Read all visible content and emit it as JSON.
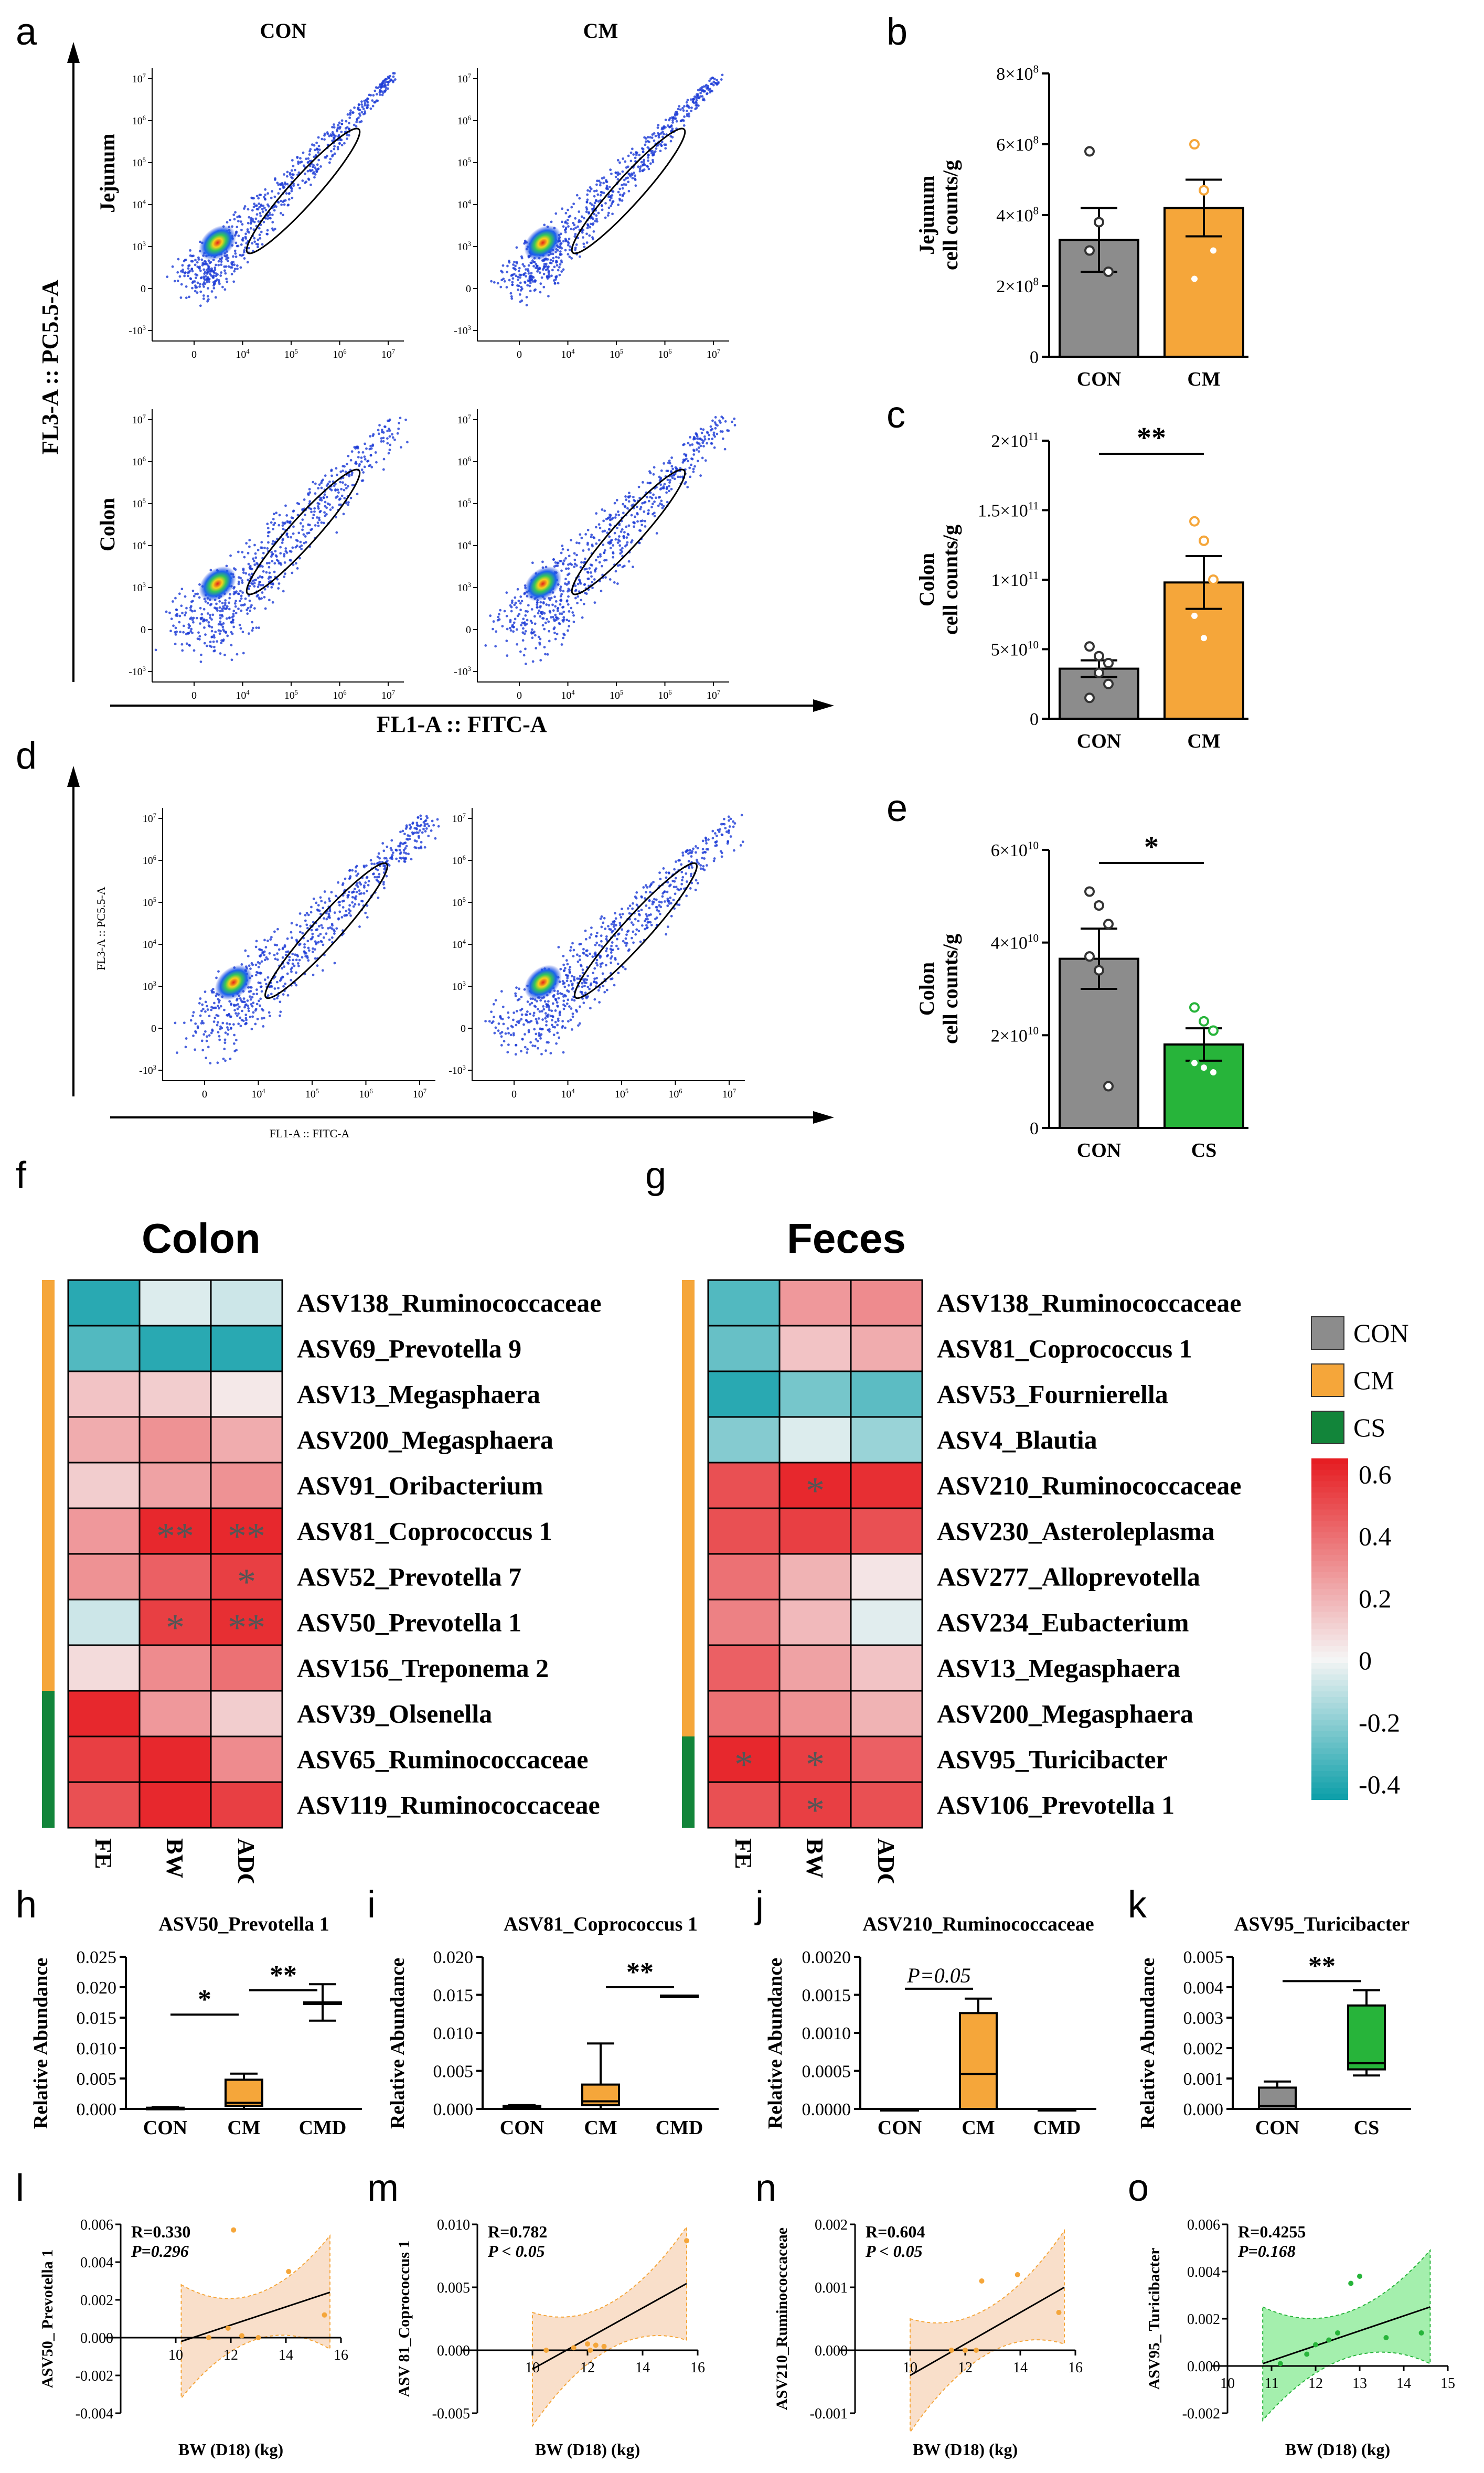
{
  "panel_letters": [
    "a",
    "b",
    "c",
    "d",
    "e",
    "f",
    "g",
    "h",
    "i",
    "j",
    "k",
    "l",
    "m",
    "n",
    "o"
  ],
  "flow": {
    "col_con": "CON",
    "col_cm": "CM",
    "row_jejunum": "Jejunum",
    "row_colon": "Colon",
    "y_axis_a": "FL3-A :: PC5.5-A",
    "x_axis_a": "FL1-A :: FITC-A",
    "y_axis_d": "FL3-A :: PC5.5-A",
    "x_axis_d": "FL1-A :: FITC-A",
    "x_ticks": [
      "0",
      "10",
      "10",
      "10",
      "10"
    ],
    "x_tick_exp": [
      "",
      "4",
      "5",
      "6",
      "7"
    ],
    "y_ticks": [
      "-10",
      "0",
      "10",
      "10",
      "10",
      "10",
      "10"
    ],
    "y_tick_exp": [
      "3",
      "",
      "3",
      "4",
      "5",
      "6",
      "7"
    ]
  },
  "legend": {
    "groups": [
      {
        "label": "CON",
        "color": "#8c8c8c"
      },
      {
        "label": "CM",
        "color": "#f5a63a"
      },
      {
        "label": "CS",
        "color": "#12853a"
      }
    ],
    "scale_ticks": [
      "0.6",
      "0.4",
      "0.2",
      "0",
      "-0.2",
      "-0.4"
    ]
  },
  "colon_heatmap": {
    "title": "Colon",
    "rows": [
      "ASV138_Ruminococcaceae",
      "ASV69_Prevotella 9",
      "ASV13_Megasphaera",
      "ASV200_Megasphaera",
      "ASV91_Oribacterium",
      "ASV81_Coprococcus 1",
      "ASV52_Prevotella 7",
      "ASV50_Prevotella 1",
      "ASV156_Treponema 2",
      "ASV39_Olsenella",
      "ASV65_Ruminococcaceae",
      "ASV119_Ruminococcaceae"
    ],
    "cols": [
      "FE",
      "BW",
      "ADG"
    ],
    "values": [
      [
        -0.4,
        -0.05,
        -0.08
      ],
      [
        -0.32,
        -0.4,
        -0.4
      ],
      [
        0.15,
        0.12,
        0.04
      ],
      [
        0.22,
        0.3,
        0.22
      ],
      [
        0.12,
        0.25,
        0.3
      ],
      [
        0.28,
        0.62,
        0.62
      ],
      [
        0.3,
        0.45,
        0.55
      ],
      [
        -0.08,
        0.55,
        0.6
      ],
      [
        0.08,
        0.32,
        0.4
      ],
      [
        0.62,
        0.28,
        0.12
      ],
      [
        0.55,
        0.62,
        0.32
      ],
      [
        0.5,
        0.62,
        0.55
      ]
    ],
    "stars": [
      [
        "",
        "",
        ""
      ],
      [
        "",
        "",
        ""
      ],
      [
        "",
        "",
        ""
      ],
      [
        "",
        "",
        ""
      ],
      [
        "",
        "",
        ""
      ],
      [
        "",
        "**",
        "**"
      ],
      [
        "",
        "",
        "*"
      ],
      [
        "",
        "*",
        "**"
      ],
      [
        "",
        "",
        ""
      ],
      [
        "",
        "",
        ""
      ],
      [
        "",
        "",
        ""
      ],
      [
        "",
        "",
        ""
      ]
    ],
    "group_bar": [
      "CM",
      "CM",
      "CM",
      "CM",
      "CM",
      "CM",
      "CM",
      "CM",
      "CM",
      "CS",
      "CS",
      "CS"
    ]
  },
  "feces_heatmap": {
    "title": "Feces",
    "rows": [
      "ASV138_Ruminococcaceae",
      "ASV81_Coprococcus 1",
      "ASV53_Fournierella",
      "ASV4_Blautia",
      "ASV210_Ruminococcaceae",
      "ASV230_Asteroleplasma",
      "ASV277_Alloprevotella",
      "ASV234_Eubacterium",
      "ASV13_Megasphaera",
      "ASV200_Megasphaera",
      "ASV95_Turicibacter",
      "ASV106_Prevotella 1"
    ],
    "cols": [
      "FE",
      "BW",
      "ADG"
    ],
    "values": [
      [
        -0.32,
        0.28,
        0.32
      ],
      [
        -0.28,
        0.15,
        0.22
      ],
      [
        -0.4,
        -0.25,
        -0.3
      ],
      [
        -0.22,
        -0.05,
        -0.18
      ],
      [
        0.5,
        0.62,
        0.6
      ],
      [
        0.5,
        0.55,
        0.5
      ],
      [
        0.4,
        0.2,
        0.05
      ],
      [
        0.35,
        0.18,
        -0.04
      ],
      [
        0.45,
        0.25,
        0.15
      ],
      [
        0.4,
        0.3,
        0.2
      ],
      [
        0.62,
        0.55,
        0.45
      ],
      [
        0.5,
        0.55,
        0.5
      ]
    ],
    "stars": [
      [
        "",
        "",
        ""
      ],
      [
        "",
        "",
        ""
      ],
      [
        "",
        "",
        ""
      ],
      [
        "",
        "",
        ""
      ],
      [
        "",
        "*",
        ""
      ],
      [
        "",
        "",
        ""
      ],
      [
        "",
        "",
        ""
      ],
      [
        "",
        "",
        ""
      ],
      [
        "",
        "",
        ""
      ],
      [
        "",
        "",
        ""
      ],
      [
        "*",
        "*",
        ""
      ],
      [
        "",
        "*",
        ""
      ]
    ],
    "group_bar": [
      "CM",
      "CM",
      "CM",
      "CM",
      "CM",
      "CM",
      "CM",
      "CM",
      "CM",
      "CM",
      "CS",
      "CS"
    ]
  },
  "chart_data": [
    {
      "id": "b",
      "type": "bar",
      "categories": [
        "CON",
        "CM"
      ],
      "values": [
        330000000.0,
        420000000.0
      ],
      "errors": [
        90000000.0,
        80000000.0
      ],
      "points": [
        [
          580000000.0,
          380000000.0,
          240000000.0,
          300000000.0
        ],
        [
          600000000.0,
          470000000.0,
          300000000.0,
          220000000.0
        ]
      ],
      "ylabel": "Jejunum cell counts/g",
      "ylim": [
        0,
        800000000.0
      ],
      "yticks": [
        "0",
        "2×10",
        "4×10",
        "6×10",
        "8×10"
      ],
      "ytick_exp": [
        "",
        "8",
        "8",
        "8",
        "8"
      ],
      "colors": [
        "#8c8c8c",
        "#f5a63a"
      ],
      "sig": ""
    },
    {
      "id": "c",
      "type": "bar",
      "categories": [
        "CON",
        "CM"
      ],
      "values": [
        36000000000.0,
        98000000000.0
      ],
      "errors": [
        6000000000.0,
        19000000000.0
      ],
      "points": [
        [
          52000000000.0,
          45000000000.0,
          25000000000.0,
          15000000000.0,
          33000000000.0,
          40000000000.0
        ],
        [
          142000000000.0,
          128000000000.0,
          100000000000.0,
          74000000000.0,
          58000000000.0
        ]
      ],
      "ylabel": "Colon cell counts/g",
      "ylim": [
        0,
        200000000000.0
      ],
      "yticks": [
        "0",
        "5×10",
        "1×10",
        "1.5×10",
        "2×10"
      ],
      "ytick_exp": [
        "",
        "10",
        "11",
        "11",
        "11"
      ],
      "colors": [
        "#8c8c8c",
        "#f5a63a"
      ],
      "sig": "**"
    },
    {
      "id": "e",
      "type": "bar",
      "categories": [
        "CON",
        "CS"
      ],
      "values": [
        36500000000.0,
        18000000000.0
      ],
      "errors": [
        6500000000.0,
        3500000000.0
      ],
      "points": [
        [
          51000000000.0,
          48000000000.0,
          44000000000.0,
          37000000000.0,
          34000000000.0,
          9000000000.0
        ],
        [
          26000000000.0,
          23000000000.0,
          21000000000.0,
          14000000000.0,
          13000000000.0,
          12000000000.0
        ]
      ],
      "ylabel": "Colon cell counts/g",
      "ylim": [
        0,
        60000000000.0
      ],
      "yticks": [
        "0",
        "2×10",
        "4×10",
        "6×10"
      ],
      "ytick_exp": [
        "",
        "10",
        "10",
        "10"
      ],
      "colors": [
        "#8c8c8c",
        "#27b43a"
      ],
      "sig": "*"
    },
    {
      "id": "h",
      "type": "box",
      "title": "ASV50_Prevotella 1",
      "categories": [
        "CON",
        "CM",
        "CMD"
      ],
      "ylabel": "Relative Abundance",
      "ylim": [
        0,
        0.025
      ],
      "yticks": [
        "0.000",
        "0.005",
        "0.010",
        "0.015",
        "0.020",
        "0.025"
      ],
      "boxes": [
        {
          "min": 0,
          "q1": 0,
          "med": 0,
          "q3": 0.0002,
          "max": 0.0003
        },
        {
          "min": 0,
          "q1": 0.0005,
          "med": 0.001,
          "q3": 0.0048,
          "max": 0.0058
        },
        {
          "min": 0.0145,
          "q1": 0.0175,
          "med": 0.0175,
          "q3": 0.0175,
          "max": 0.0205
        }
      ],
      "fill": "#f5a63a",
      "sig": [
        {
          "from": 0,
          "to": 1,
          "label": "*",
          "y": 0.0155
        },
        {
          "from": 1,
          "to": 2,
          "label": "**",
          "y": 0.0195
        }
      ]
    },
    {
      "id": "i",
      "type": "box",
      "title": "ASV81_Coprococcus 1",
      "categories": [
        "CON",
        "CM",
        "CMD"
      ],
      "ylabel": "Relative Abundance",
      "ylim": [
        0,
        0.02
      ],
      "yticks": [
        "0.000",
        "0.005",
        "0.010",
        "0.015",
        "0.020"
      ],
      "boxes": [
        {
          "min": 0,
          "q1": 0.0002,
          "med": 0.0003,
          "q3": 0.0004,
          "max": 0.0005
        },
        {
          "min": 0,
          "q1": 0.0005,
          "med": 0.001,
          "q3": 0.0032,
          "max": 0.0086
        },
        {
          "min": 0.0149,
          "q1": 0.0149,
          "med": 0.0149,
          "q3": 0.0149,
          "max": 0.0149
        }
      ],
      "fill": "#f5a63a",
      "sig": [
        {
          "from": 1,
          "to": 2,
          "label": "**",
          "y": 0.016
        }
      ]
    },
    {
      "id": "j",
      "type": "box",
      "title": "ASV210_Ruminococcaceae",
      "categories": [
        "CON",
        "CM",
        "CMD"
      ],
      "ylabel": "Relative Abundance",
      "ylim": [
        0,
        0.002
      ],
      "yticks": [
        "0.0000",
        "0.0005",
        "0.0010",
        "0.0015",
        "0.0020"
      ],
      "boxes": [
        {
          "min": 0,
          "q1": 0,
          "med": 0,
          "q3": 0,
          "max": 0
        },
        {
          "min": 0,
          "q1": 0,
          "med": 0.00046,
          "q3": 0.00126,
          "max": 0.00145
        },
        {
          "min": 0,
          "q1": 0,
          "med": 0,
          "q3": 0,
          "max": 0
        }
      ],
      "fill": "#f5a63a",
      "sig": [
        {
          "from": 0,
          "to": 1,
          "label": "P=0.05",
          "y": 0.00158
        }
      ]
    },
    {
      "id": "k",
      "type": "box",
      "title": "ASV95_Turicibacter",
      "categories": [
        "CON",
        "CS"
      ],
      "ylabel": "Relative Abundance",
      "ylim": [
        0,
        0.005
      ],
      "yticks": [
        "0.000",
        "0.001",
        "0.002",
        "0.003",
        "0.004",
        "0.005"
      ],
      "boxes": [
        {
          "min": 0,
          "q1": 0,
          "med": 0.0001,
          "q3": 0.0007,
          "max": 0.0009
        },
        {
          "min": 0.0011,
          "q1": 0.0013,
          "med": 0.0015,
          "q3": 0.0034,
          "max": 0.0039
        }
      ],
      "fills": [
        "#8c8c8c",
        "#27b43a"
      ],
      "sig": [
        {
          "from": 0,
          "to": 1,
          "label": "**",
          "y": 0.0042
        }
      ]
    },
    {
      "id": "l",
      "type": "scatter",
      "ylabel": "ASV50_ Prevotella 1",
      "xlabel": "BW (D18) (kg)",
      "r": "R=0.330",
      "p": "P=0.296",
      "xlim": [
        8,
        16
      ],
      "ylim": [
        -0.004,
        0.006
      ],
      "xticks": [
        "10",
        "12",
        "14",
        "16"
      ],
      "yticks": [
        "-0.004",
        "-0.002",
        "0.000",
        "0.002",
        "0.004",
        "0.006"
      ],
      "points": [
        [
          12.1,
          0.0057
        ],
        [
          14.1,
          0.0035
        ],
        [
          11.9,
          0.0005
        ],
        [
          12.4,
          0.0001
        ],
        [
          11.2,
          0.0
        ],
        [
          13.0,
          0.0
        ],
        [
          15.4,
          0.0012
        ]
      ],
      "fit": [
        [
          10.2,
          -0.0002
        ],
        [
          15.6,
          0.0024
        ]
      ],
      "color": "#f5a63a"
    },
    {
      "id": "m",
      "type": "scatter",
      "ylabel": "ASV 81_Coprococcus 1",
      "xlabel": "BW (D18) (kg)",
      "r": "R=0.782",
      "p": "P < 0.05",
      "xlim": [
        8,
        16
      ],
      "ylim": [
        -0.005,
        0.01
      ],
      "xticks": [
        "10",
        "12",
        "14",
        "16"
      ],
      "yticks": [
        "-0.005",
        "0.000",
        "0.005",
        "0.010"
      ],
      "points": [
        [
          10.5,
          0.0
        ],
        [
          11.5,
          0.0002
        ],
        [
          12.0,
          0.0005
        ],
        [
          12.3,
          0.0004
        ],
        [
          12.6,
          0.0003
        ],
        [
          12.1,
          0.0
        ],
        [
          15.6,
          0.0087
        ]
      ],
      "fit": [
        [
          10.0,
          -0.0015
        ],
        [
          15.6,
          0.0053
        ]
      ],
      "color": "#f5a63a"
    },
    {
      "id": "n",
      "type": "scatter",
      "ylabel": "ASV210_Ruminococcaceae",
      "xlabel": "BW (D18) (kg)",
      "r": "R=0.604",
      "p": "P < 0.05",
      "xlim": [
        8,
        16
      ],
      "ylim": [
        -0.001,
        0.002
      ],
      "xticks": [
        "10",
        "12",
        "14",
        "16"
      ],
      "yticks": [
        "-0.001",
        "0.000",
        "0.001",
        "0.002"
      ],
      "points": [
        [
          11.5,
          0.0
        ],
        [
          12.0,
          0.0
        ],
        [
          12.4,
          0.0
        ],
        [
          12.6,
          0.0011
        ],
        [
          13.9,
          0.0012
        ],
        [
          15.4,
          0.0006
        ]
      ],
      "fit": [
        [
          10.0,
          -0.0004
        ],
        [
          15.6,
          0.001
        ]
      ],
      "color": "#f5a63a"
    },
    {
      "id": "o",
      "type": "scatter",
      "ylabel": "ASV95_ Turicibacter",
      "xlabel": "BW (D18) (kg)",
      "r": "R=0.4255",
      "p": "P=0.168",
      "xlim": [
        10,
        15
      ],
      "ylim": [
        -0.002,
        0.006
      ],
      "xticks": [
        "10",
        "11",
        "12",
        "13",
        "14",
        "15"
      ],
      "yticks": [
        "-0.002",
        "0.000",
        "0.002",
        "0.004",
        "0.006"
      ],
      "points": [
        [
          11.2,
          0.0001
        ],
        [
          11.8,
          0.0005
        ],
        [
          12.0,
          0.0009
        ],
        [
          12.3,
          0.0011
        ],
        [
          12.5,
          0.0014
        ],
        [
          12.8,
          0.0035
        ],
        [
          13.0,
          0.0038
        ],
        [
          13.6,
          0.0012
        ],
        [
          14.4,
          0.0014
        ]
      ],
      "fit": [
        [
          10.8,
          0.0001
        ],
        [
          14.6,
          0.0025
        ]
      ],
      "color": "#27b43a"
    }
  ]
}
